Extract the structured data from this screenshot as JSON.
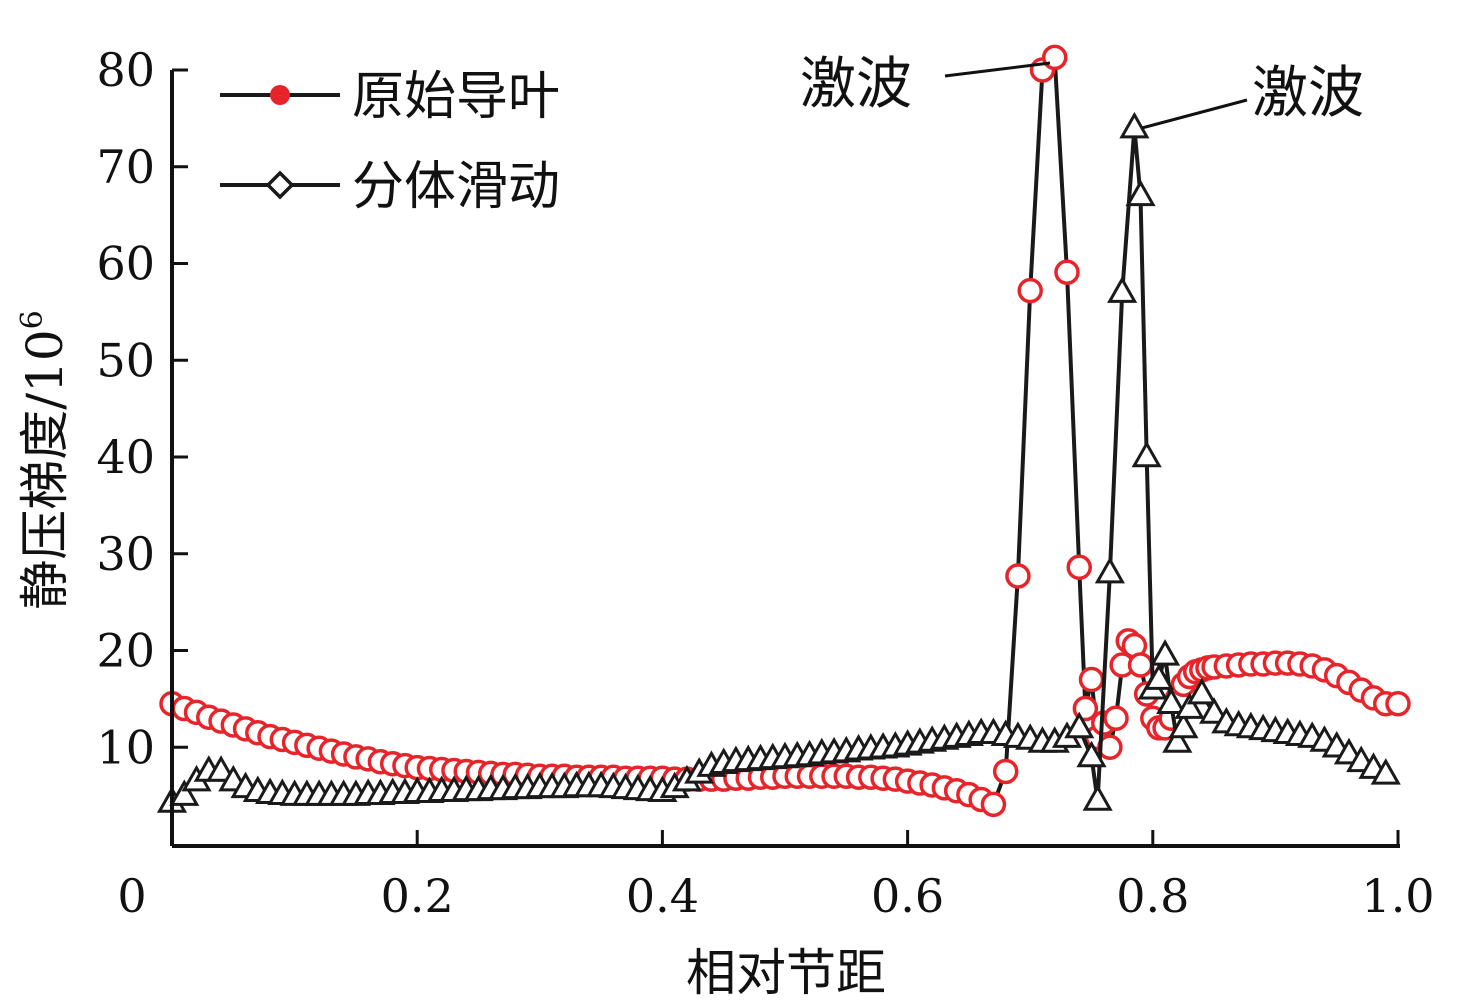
{
  "chart_data": {
    "type": "line",
    "xlabel": "相对节距",
    "ylabel": "静压梯度/10",
    "ylabel_superscript": "6",
    "xlim": [
      0,
      1.0
    ],
    "ylim": [
      0,
      80
    ],
    "x_ticks": [
      {
        "value": 0,
        "label": "0"
      },
      {
        "value": 0.2,
        "label": "0.2"
      },
      {
        "value": 0.4,
        "label": "0.4"
      },
      {
        "value": 0.6,
        "label": "0.6"
      },
      {
        "value": 0.8,
        "label": "0.8"
      },
      {
        "value": 1.0,
        "label": "1.0"
      }
    ],
    "y_ticks": [
      {
        "value": 10,
        "label": "10"
      },
      {
        "value": 20,
        "label": "20"
      },
      {
        "value": 30,
        "label": "30"
      },
      {
        "value": 40,
        "label": "40"
      },
      {
        "value": 50,
        "label": "50"
      },
      {
        "value": 60,
        "label": "60"
      },
      {
        "value": 70,
        "label": "70"
      },
      {
        "value": 80,
        "label": "80"
      }
    ],
    "grid": false,
    "legend_position": "top-left",
    "annotations": [
      {
        "text": "激波",
        "target_series": 0,
        "target_x": 0.72,
        "target_y": 81.5,
        "side": "left"
      },
      {
        "text": "激波",
        "target_series": 1,
        "target_x": 0.785,
        "target_y": 74,
        "side": "right"
      }
    ],
    "series": [
      {
        "name": "原始导叶",
        "marker": "circle",
        "marker_color": "#e8242b",
        "line_color": "#1a1a1a",
        "x": [
          0.0,
          0.01,
          0.02,
          0.03,
          0.04,
          0.05,
          0.06,
          0.07,
          0.08,
          0.09,
          0.1,
          0.11,
          0.12,
          0.13,
          0.14,
          0.15,
          0.16,
          0.17,
          0.18,
          0.19,
          0.2,
          0.21,
          0.22,
          0.23,
          0.24,
          0.25,
          0.26,
          0.27,
          0.28,
          0.29,
          0.3,
          0.31,
          0.32,
          0.33,
          0.34,
          0.35,
          0.36,
          0.37,
          0.38,
          0.39,
          0.4,
          0.41,
          0.42,
          0.43,
          0.44,
          0.45,
          0.46,
          0.47,
          0.48,
          0.49,
          0.5,
          0.51,
          0.52,
          0.53,
          0.54,
          0.55,
          0.56,
          0.57,
          0.58,
          0.59,
          0.6,
          0.61,
          0.62,
          0.63,
          0.64,
          0.65,
          0.66,
          0.67,
          0.68,
          0.69,
          0.7,
          0.71,
          0.72,
          0.73,
          0.74,
          0.745,
          0.75,
          0.755,
          0.76,
          0.765,
          0.77,
          0.775,
          0.78,
          0.785,
          0.79,
          0.795,
          0.8,
          0.805,
          0.81,
          0.815,
          0.82,
          0.825,
          0.83,
          0.835,
          0.84,
          0.845,
          0.85,
          0.86,
          0.87,
          0.88,
          0.89,
          0.9,
          0.91,
          0.92,
          0.93,
          0.94,
          0.95,
          0.96,
          0.97,
          0.98,
          0.99,
          1.0
        ],
        "y": [
          14.5,
          14.0,
          13.6,
          13.1,
          12.7,
          12.3,
          11.9,
          11.5,
          11.1,
          10.8,
          10.5,
          10.2,
          9.9,
          9.6,
          9.3,
          9.0,
          8.8,
          8.5,
          8.3,
          8.1,
          7.9,
          7.8,
          7.7,
          7.6,
          7.5,
          7.4,
          7.3,
          7.2,
          7.2,
          7.1,
          7.0,
          7.0,
          7.0,
          6.9,
          6.9,
          6.9,
          6.9,
          6.8,
          6.8,
          6.8,
          6.8,
          6.7,
          6.7,
          6.7,
          6.7,
          6.7,
          6.8,
          6.8,
          6.9,
          6.9,
          7.0,
          7.0,
          7.0,
          7.0,
          7.0,
          7.0,
          6.9,
          6.9,
          6.8,
          6.7,
          6.5,
          6.3,
          6.1,
          5.8,
          5.5,
          5.1,
          4.6,
          4.1,
          7.5,
          27.7,
          57.2,
          80.0,
          81.3,
          59.1,
          28.6,
          14.0,
          17.0,
          11.0,
          12.5,
          10.0,
          13.0,
          18.5,
          21.0,
          20.5,
          18.5,
          15.5,
          13.0,
          12.0,
          12.0,
          13.0,
          15.0,
          16.5,
          17.3,
          17.8,
          18.0,
          18.2,
          18.3,
          18.4,
          18.5,
          18.6,
          18.6,
          18.7,
          18.7,
          18.6,
          18.4,
          18.0,
          17.4,
          16.7,
          15.9,
          15.1,
          14.5,
          14.5
        ]
      },
      {
        "name": "分体滑动",
        "marker": "triangle",
        "marker_color": "#1a1a1a",
        "line_color": "#1a1a1a",
        "x": [
          0.0,
          0.01,
          0.02,
          0.03,
          0.04,
          0.05,
          0.06,
          0.07,
          0.08,
          0.09,
          0.1,
          0.11,
          0.12,
          0.13,
          0.14,
          0.15,
          0.16,
          0.17,
          0.18,
          0.19,
          0.2,
          0.21,
          0.22,
          0.23,
          0.24,
          0.25,
          0.26,
          0.27,
          0.28,
          0.29,
          0.3,
          0.31,
          0.32,
          0.33,
          0.34,
          0.35,
          0.36,
          0.37,
          0.38,
          0.39,
          0.4,
          0.41,
          0.42,
          0.43,
          0.44,
          0.45,
          0.46,
          0.47,
          0.48,
          0.49,
          0.5,
          0.51,
          0.52,
          0.53,
          0.54,
          0.55,
          0.56,
          0.57,
          0.58,
          0.59,
          0.6,
          0.61,
          0.62,
          0.63,
          0.64,
          0.65,
          0.66,
          0.67,
          0.68,
          0.69,
          0.7,
          0.71,
          0.72,
          0.73,
          0.74,
          0.75,
          0.755,
          0.765,
          0.775,
          0.785,
          0.79,
          0.795,
          0.8,
          0.805,
          0.81,
          0.815,
          0.82,
          0.825,
          0.83,
          0.84,
          0.85,
          0.86,
          0.87,
          0.88,
          0.89,
          0.9,
          0.91,
          0.92,
          0.93,
          0.94,
          0.95,
          0.96,
          0.97,
          0.98,
          0.99
        ],
        "y": [
          4.3,
          5.0,
          6.5,
          7.5,
          7.5,
          6.5,
          5.8,
          5.4,
          5.2,
          5.1,
          5.0,
          5.0,
          5.0,
          5.0,
          5.0,
          5.0,
          5.1,
          5.1,
          5.2,
          5.2,
          5.3,
          5.3,
          5.4,
          5.4,
          5.5,
          5.5,
          5.6,
          5.6,
          5.7,
          5.7,
          5.8,
          5.8,
          5.8,
          5.9,
          5.9,
          5.9,
          5.8,
          5.7,
          5.6,
          5.5,
          5.4,
          5.8,
          6.5,
          7.3,
          8.0,
          8.3,
          8.5,
          8.6,
          8.7,
          8.8,
          8.9,
          9.0,
          9.1,
          9.3,
          9.4,
          9.5,
          9.7,
          9.8,
          9.9,
          10.0,
          10.2,
          10.4,
          10.6,
          10.8,
          11.0,
          11.2,
          11.4,
          11.4,
          11.2,
          11.0,
          10.8,
          10.5,
          10.5,
          11.0,
          12.0,
          9.0,
          4.5,
          28.0,
          57.0,
          74.0,
          67.0,
          40.0,
          16.0,
          17.0,
          19.5,
          14.5,
          10.5,
          12.0,
          14.0,
          15.5,
          13.5,
          12.5,
          12.2,
          12.0,
          11.8,
          11.6,
          11.4,
          11.2,
          11.0,
          10.6,
          10.0,
          9.3,
          8.5,
          7.8,
          7.2
        ]
      }
    ]
  }
}
